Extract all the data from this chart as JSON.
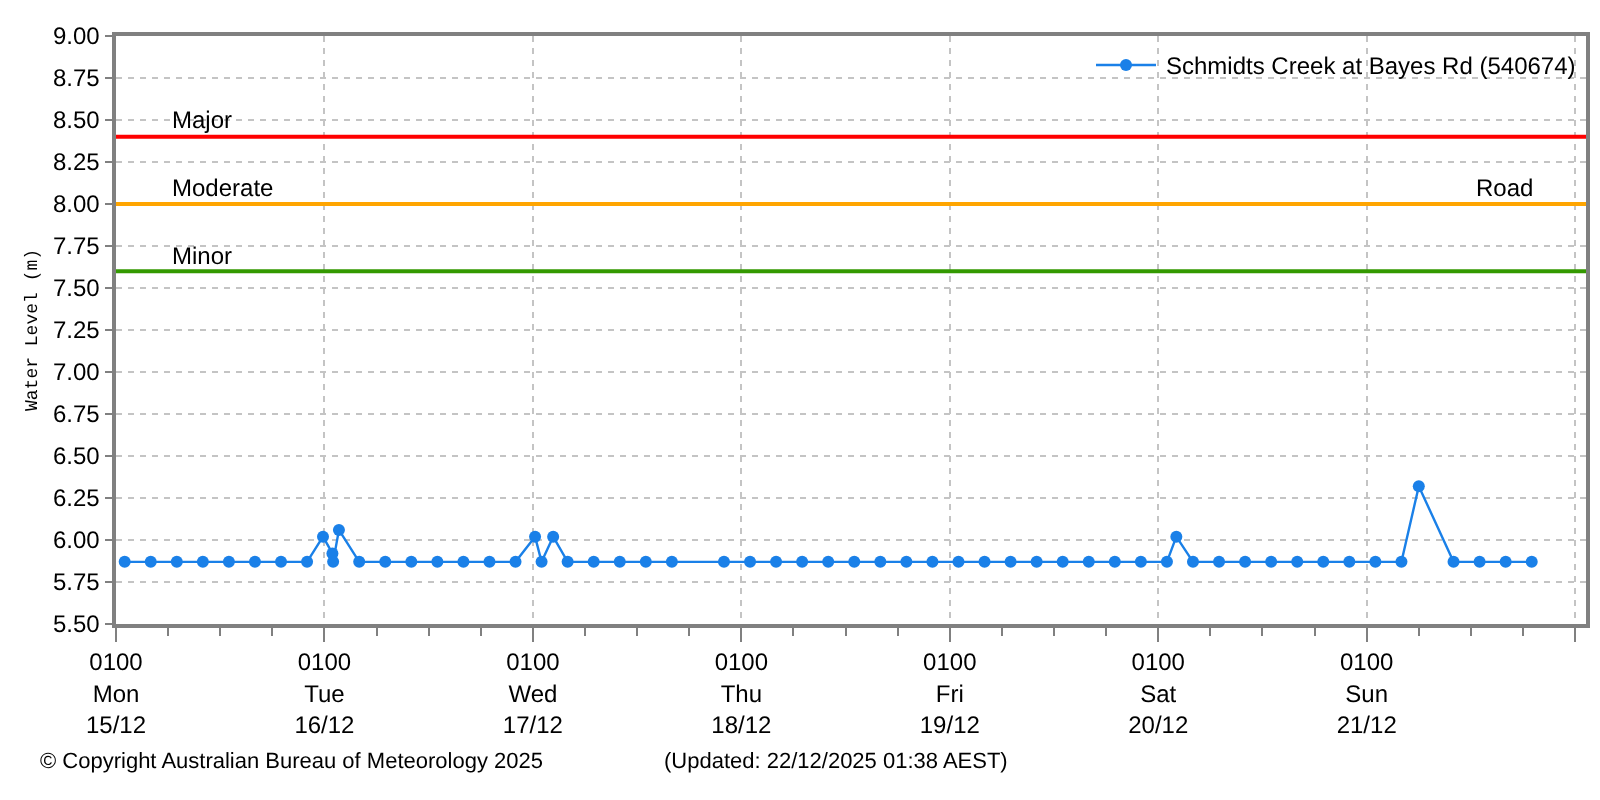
{
  "chart_data": {
    "type": "line",
    "ylabel": "Water Level (m)",
    "annotations": [
      "© Copyright Australian Bureau of Meteorology 2025",
      "(Updated: 22/12/2025 01:38 AEST)",
      {
        "text": "Road",
        "x": "2025-12-21T17:00",
        "y": 8.0
      }
    ],
    "x": [
      "2025-12-15T02:00",
      "2025-12-15T05:00",
      "2025-12-15T08:00",
      "2025-12-15T11:00",
      "2025-12-15T14:00",
      "2025-12-15T17:00",
      "2025-12-15T20:00",
      "2025-12-15T23:00",
      "2025-12-16T00:50",
      "2025-12-16T01:55",
      "2025-12-16T02:00",
      "2025-12-16T02:40",
      "2025-12-16T05:00",
      "2025-12-16T08:00",
      "2025-12-16T11:00",
      "2025-12-16T14:00",
      "2025-12-16T17:00",
      "2025-12-16T20:00",
      "2025-12-16T23:00",
      "2025-12-17T01:15",
      "2025-12-17T02:00",
      "2025-12-17T03:20",
      "2025-12-17T05:00",
      "2025-12-17T08:00",
      "2025-12-17T11:00",
      "2025-12-17T14:00",
      "2025-12-17T17:00",
      "2025-12-17T23:00",
      "2025-12-18T02:00",
      "2025-12-18T05:00",
      "2025-12-18T08:00",
      "2025-12-18T11:00",
      "2025-12-18T14:00",
      "2025-12-18T17:00",
      "2025-12-18T20:00",
      "2025-12-18T23:00",
      "2025-12-19T02:00",
      "2025-12-19T05:00",
      "2025-12-19T08:00",
      "2025-12-19T11:00",
      "2025-12-19T14:00",
      "2025-12-19T17:00",
      "2025-12-19T20:00",
      "2025-12-19T23:00",
      "2025-12-20T02:00",
      "2025-12-20T03:05",
      "2025-12-20T05:00",
      "2025-12-20T08:00",
      "2025-12-20T11:00",
      "2025-12-20T14:00",
      "2025-12-20T17:00",
      "2025-12-20T20:00",
      "2025-12-20T23:00",
      "2025-12-21T02:00",
      "2025-12-21T05:00",
      "2025-12-21T07:00",
      "2025-12-21T11:00",
      "2025-12-21T14:00",
      "2025-12-21T17:00",
      "2025-12-21T20:00"
    ],
    "series": [
      {
        "name": "Schmidts Creek at Bayes Rd (540674)",
        "color": "#1a80e8",
        "values": [
          5.87,
          5.87,
          5.87,
          5.87,
          5.87,
          5.87,
          5.87,
          5.87,
          6.02,
          5.92,
          5.87,
          6.06,
          5.87,
          5.87,
          5.87,
          5.87,
          5.87,
          5.87,
          5.87,
          6.02,
          5.87,
          6.02,
          5.87,
          5.87,
          5.87,
          5.87,
          5.87,
          5.87,
          5.87,
          5.87,
          5.87,
          5.87,
          5.87,
          5.87,
          5.87,
          5.87,
          5.87,
          5.87,
          5.87,
          5.87,
          5.87,
          5.87,
          5.87,
          5.87,
          5.87,
          6.02,
          5.87,
          5.87,
          5.87,
          5.87,
          5.87,
          5.87,
          5.87,
          5.87,
          5.87,
          6.32,
          5.87,
          5.87,
          5.87,
          5.87
        ]
      }
    ],
    "xlim": [
      "2025-12-15T01:00",
      "2025-12-22T02:15"
    ],
    "xticks": [
      {
        "value": "2025-12-15T01:00",
        "label": "0100\nMon\n15/12"
      },
      {
        "value": "2025-12-15T07:00",
        "label": null
      },
      {
        "value": "2025-12-15T13:00",
        "label": null
      },
      {
        "value": "2025-12-15T19:00",
        "label": null
      },
      {
        "value": "2025-12-16T01:00",
        "label": "0100\nTue\n16/12"
      },
      {
        "value": "2025-12-16T07:00",
        "label": null
      },
      {
        "value": "2025-12-16T13:00",
        "label": null
      },
      {
        "value": "2025-12-16T19:00",
        "label": null
      },
      {
        "value": "2025-12-17T01:00",
        "label": "0100\nWed\n17/12"
      },
      {
        "value": "2025-12-17T07:00",
        "label": null
      },
      {
        "value": "2025-12-17T13:00",
        "label": null
      },
      {
        "value": "2025-12-17T19:00",
        "label": null
      },
      {
        "value": "2025-12-18T01:00",
        "label": "0100\nThu\n18/12"
      },
      {
        "value": "2025-12-18T07:00",
        "label": null
      },
      {
        "value": "2025-12-18T13:00",
        "label": null
      },
      {
        "value": "2025-12-18T19:00",
        "label": null
      },
      {
        "value": "2025-12-19T01:00",
        "label": "0100\nFri\n19/12"
      },
      {
        "value": "2025-12-19T07:00",
        "label": null
      },
      {
        "value": "2025-12-19T13:00",
        "label": null
      },
      {
        "value": "2025-12-19T19:00",
        "label": null
      },
      {
        "value": "2025-12-20T01:00",
        "label": "0100\nSat\n20/12"
      },
      {
        "value": "2025-12-20T07:00",
        "label": null
      },
      {
        "value": "2025-12-20T13:00",
        "label": null
      },
      {
        "value": "2025-12-20T19:00",
        "label": null
      },
      {
        "value": "2025-12-21T01:00",
        "label": "0100\nSun\n21/12"
      },
      {
        "value": "2025-12-21T07:00",
        "label": null
      },
      {
        "value": "2025-12-21T13:00",
        "label": null
      },
      {
        "value": "2025-12-21T19:00",
        "label": null
      },
      {
        "value": "2025-12-22T01:00",
        "label": null
      }
    ],
    "ylim": [
      5.5,
      9.0
    ],
    "yticks": [
      {
        "value": 5.5,
        "label": "5.50"
      },
      {
        "value": 5.75,
        "label": "5.75"
      },
      {
        "value": 6.0,
        "label": "6.00"
      },
      {
        "value": 6.25,
        "label": "6.25"
      },
      {
        "value": 6.5,
        "label": "6.50"
      },
      {
        "value": 6.75,
        "label": "6.75"
      },
      {
        "value": 7.0,
        "label": "7.00"
      },
      {
        "value": 7.25,
        "label": "7.25"
      },
      {
        "value": 7.5,
        "label": "7.50"
      },
      {
        "value": 7.75,
        "label": "7.75"
      },
      {
        "value": 8.0,
        "label": "8.00"
      },
      {
        "value": 8.25,
        "label": "8.25"
      },
      {
        "value": 8.5,
        "label": "8.50"
      },
      {
        "value": 8.75,
        "label": "8.75"
      },
      {
        "value": 9.0,
        "label": "9.00"
      }
    ],
    "ref_lines": [
      {
        "axis": "y",
        "value": 8.4,
        "label": "Major",
        "color": "#ff0000"
      },
      {
        "axis": "y",
        "value": 8.0,
        "label": "Moderate",
        "color": "#ffa500"
      },
      {
        "axis": "y",
        "value": 7.6,
        "label": "Minor",
        "color": "#339900"
      }
    ],
    "grid": true,
    "legend": "top right",
    "marker": "circle",
    "line_style": "solid"
  }
}
